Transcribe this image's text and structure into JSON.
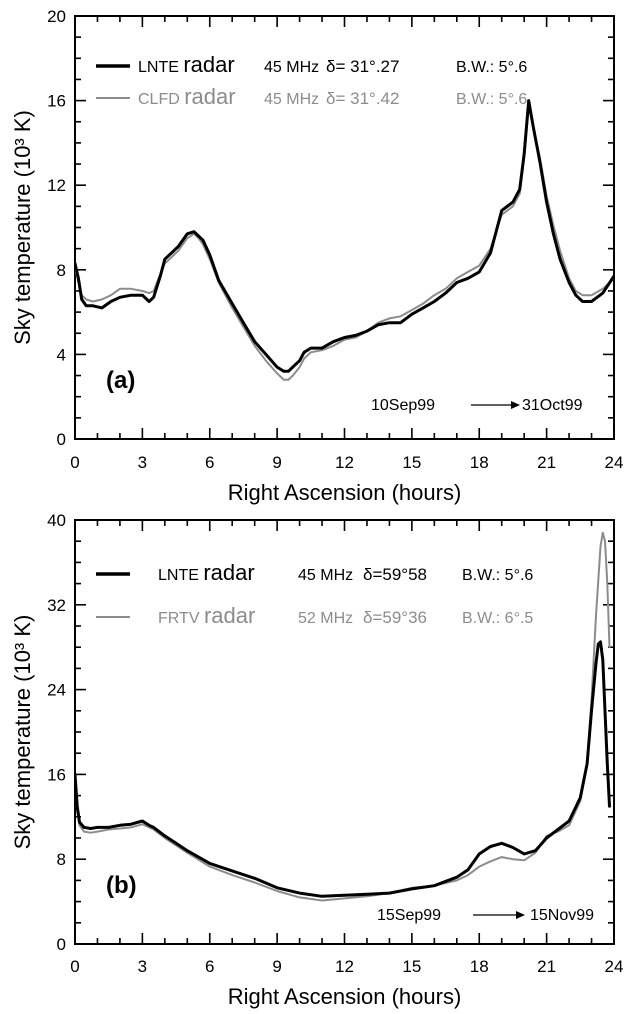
{
  "chart_data": [
    {
      "type": "line",
      "panel_label": "(a)",
      "xlabel": "Right Ascension (hours)",
      "ylabel": "Sky temperature (10³ K)",
      "xlim": [
        0,
        24
      ],
      "ylim": [
        0,
        20
      ],
      "xticks": [
        "0",
        "3",
        "6",
        "9",
        "12",
        "15",
        "18",
        "21",
        "24"
      ],
      "yticks": [
        "0",
        "4",
        "8",
        "12",
        "16",
        "20"
      ],
      "grid": false,
      "legend_position": "top-left",
      "date_range": {
        "start": "10Sep99",
        "arrow": "→",
        "end": "31Oct99"
      },
      "series": [
        {
          "name": "LNTE radar",
          "name_prefix": "LNTE",
          "name_suffix": "radar",
          "frequency": "45 MHz",
          "declination": "δ= 31°.27",
          "beamwidth": "B.W.: 5°.6",
          "color": "#000000",
          "width": "thick",
          "x": [
            0,
            0.15,
            0.3,
            0.5,
            0.8,
            1.2,
            1.6,
            2,
            2.5,
            3,
            3.3,
            3.5,
            3.8,
            4,
            4.3,
            4.6,
            5,
            5.3,
            5.5,
            5.7,
            6,
            6.4,
            7,
            7.5,
            8,
            8.5,
            9,
            9.3,
            9.5,
            9.7,
            10,
            10.2,
            10.5,
            11,
            11.5,
            12,
            12.5,
            13,
            13.5,
            14,
            14.5,
            15,
            15.5,
            16,
            16.5,
            17,
            17.5,
            18,
            18.5,
            19,
            19.5,
            19.8,
            20,
            20.2,
            20.4,
            20.7,
            21,
            21.3,
            21.6,
            22,
            22.3,
            22.6,
            23,
            23.5,
            24
          ],
          "y": [
            8.3,
            7.6,
            6.6,
            6.3,
            6.3,
            6.2,
            6.5,
            6.7,
            6.8,
            6.8,
            6.5,
            6.7,
            7.7,
            8.5,
            8.8,
            9.1,
            9.7,
            9.8,
            9.6,
            9.4,
            8.7,
            7.5,
            6.4,
            5.5,
            4.6,
            4,
            3.4,
            3.2,
            3.2,
            3.4,
            3.7,
            4.1,
            4.3,
            4.3,
            4.6,
            4.8,
            4.9,
            5.1,
            5.4,
            5.5,
            5.5,
            5.9,
            6.2,
            6.5,
            6.9,
            7.4,
            7.6,
            7.9,
            8.8,
            10.8,
            11.2,
            11.8,
            13.5,
            16,
            14.8,
            13.1,
            11.2,
            9.7,
            8.5,
            7.4,
            6.8,
            6.5,
            6.5,
            6.9,
            7.7
          ]
        },
        {
          "name": "CLFD radar",
          "name_prefix": "CLFD",
          "name_suffix": "radar",
          "frequency": "45 MHz",
          "declination": "δ= 31°.42",
          "beamwidth": "B.W.: 5°.6",
          "color": "#8c8c8c",
          "width": "thin",
          "x": [
            0,
            0.15,
            0.3,
            0.5,
            0.8,
            1.2,
            1.6,
            2,
            2.5,
            3,
            3.3,
            3.5,
            3.8,
            4,
            4.3,
            4.6,
            5,
            5.3,
            5.5,
            5.7,
            6,
            6.4,
            7,
            7.5,
            8,
            8.5,
            9,
            9.3,
            9.5,
            9.7,
            10,
            10.2,
            10.5,
            11,
            11.5,
            12,
            12.5,
            13,
            13.5,
            14,
            14.5,
            15,
            15.5,
            16,
            16.5,
            17,
            17.5,
            18,
            18.5,
            19,
            19.5,
            19.8,
            20,
            20.2,
            20.4,
            20.7,
            21,
            21.3,
            21.6,
            22,
            22.3,
            22.6,
            23,
            23.5,
            24
          ],
          "y": [
            8.1,
            7.4,
            6.8,
            6.6,
            6.5,
            6.6,
            6.8,
            7.1,
            7.1,
            7,
            6.9,
            7,
            7.8,
            8.3,
            8.6,
            8.9,
            9.5,
            9.7,
            9.5,
            9.2,
            8.5,
            7.4,
            6.2,
            5.3,
            4.4,
            3.7,
            3.1,
            2.8,
            2.8,
            3,
            3.4,
            3.8,
            4.1,
            4.2,
            4.4,
            4.7,
            4.8,
            5.1,
            5.5,
            5.7,
            5.8,
            6.1,
            6.4,
            6.8,
            7.1,
            7.6,
            7.9,
            8.2,
            9,
            10.6,
            11,
            11.6,
            13.3,
            15.7,
            14.8,
            13.3,
            11.5,
            10.1,
            8.9,
            7.6,
            7,
            6.8,
            6.8,
            7.1,
            7.6
          ]
        }
      ]
    },
    {
      "type": "line",
      "panel_label": "(b)",
      "xlabel": "Right Ascension (hours)",
      "ylabel": "Sky temperature (10³ K)",
      "xlim": [
        0,
        24
      ],
      "ylim": [
        0,
        40
      ],
      "xticks": [
        "0",
        "3",
        "6",
        "9",
        "12",
        "15",
        "18",
        "21",
        "24"
      ],
      "yticks": [
        "0",
        "8",
        "16",
        "24",
        "32",
        "40"
      ],
      "grid": false,
      "legend_position": "top-left",
      "date_range": {
        "start": "15Sep99",
        "arrow": "→",
        "end": "15Nov99"
      },
      "series": [
        {
          "name": "LNTE radar",
          "name_prefix": "LNTE",
          "name_suffix": "radar",
          "frequency": "45 MHz",
          "declination": "δ=59°58",
          "beamwidth": "B.W.: 5°.6",
          "color": "#000000",
          "width": "thick",
          "x": [
            0,
            0.1,
            0.2,
            0.4,
            0.7,
            1,
            1.5,
            2,
            2.5,
            3,
            3.3,
            3.5,
            4,
            4.5,
            5,
            6,
            7,
            8,
            9,
            10,
            11,
            12,
            13,
            14,
            15,
            16,
            17,
            17.5,
            18,
            18.5,
            19,
            19.5,
            20,
            20.5,
            21,
            21.5,
            22,
            22.5,
            22.8,
            23,
            23.2,
            23.3,
            23.4,
            23.5,
            23.6,
            23.7,
            23.8
          ],
          "y": [
            16,
            13,
            11.5,
            11,
            10.9,
            11,
            11,
            11.2,
            11.3,
            11.6,
            11.2,
            11,
            10.2,
            9.5,
            8.8,
            7.6,
            6.9,
            6.2,
            5.3,
            4.8,
            4.5,
            4.6,
            4.7,
            4.8,
            5.2,
            5.5,
            6.3,
            7,
            8.5,
            9.2,
            9.5,
            9.1,
            8.5,
            8.8,
            10,
            10.8,
            11.6,
            13.8,
            17,
            22,
            26.5,
            28.3,
            28.5,
            26.8,
            22,
            17,
            13
          ]
        },
        {
          "name": "FRTV radar",
          "name_prefix": "FRTV",
          "name_suffix": "radar",
          "frequency": "52 MHz",
          "declination": "δ=59°36",
          "beamwidth": "B.W.: 6°.5",
          "color": "#8c8c8c",
          "width": "thin",
          "x": [
            0,
            0.1,
            0.2,
            0.4,
            0.7,
            1,
            1.5,
            2,
            2.5,
            3,
            3.3,
            3.5,
            4,
            4.5,
            5,
            6,
            7,
            8,
            9,
            10,
            11,
            12,
            13,
            14,
            15,
            16,
            17,
            17.5,
            18,
            18.5,
            19,
            19.5,
            20,
            20.5,
            21,
            21.5,
            22,
            22.5,
            22.8,
            23,
            23.2,
            23.4,
            23.5,
            23.6,
            23.7,
            23.8
          ],
          "y": [
            15,
            12.5,
            11.2,
            10.6,
            10.5,
            10.6,
            10.8,
            10.9,
            11,
            11.3,
            11,
            10.8,
            10,
            9.3,
            8.6,
            7.3,
            6.5,
            5.8,
            5,
            4.4,
            4.1,
            4.3,
            4.5,
            4.8,
            5.3,
            5.5,
            6,
            6.5,
            7.3,
            7.8,
            8.2,
            8,
            7.9,
            8.6,
            10.2,
            10.6,
            11.2,
            13.5,
            17,
            23,
            31,
            37.5,
            38.8,
            38,
            34,
            28
          ]
        }
      ]
    }
  ]
}
